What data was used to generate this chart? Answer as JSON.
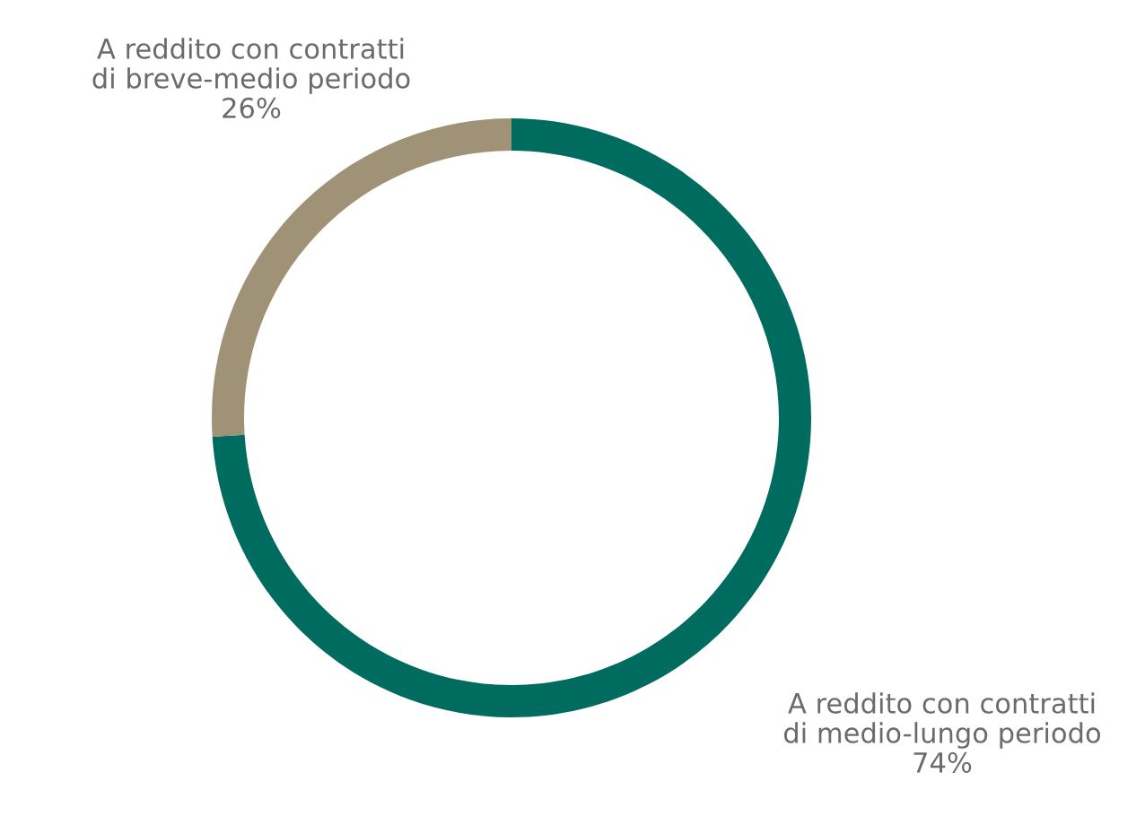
{
  "chart_data": {
    "type": "donut",
    "categories": [
      "A reddito con contratti\ndi medio-lungo periodo",
      "A reddito con contratti\ndi breve-medio periodo"
    ],
    "values": [
      74,
      26
    ],
    "colors": [
      "#006b5f",
      "#a09276"
    ],
    "value_labels": [
      "74%",
      "26%"
    ],
    "legend": false
  }
}
